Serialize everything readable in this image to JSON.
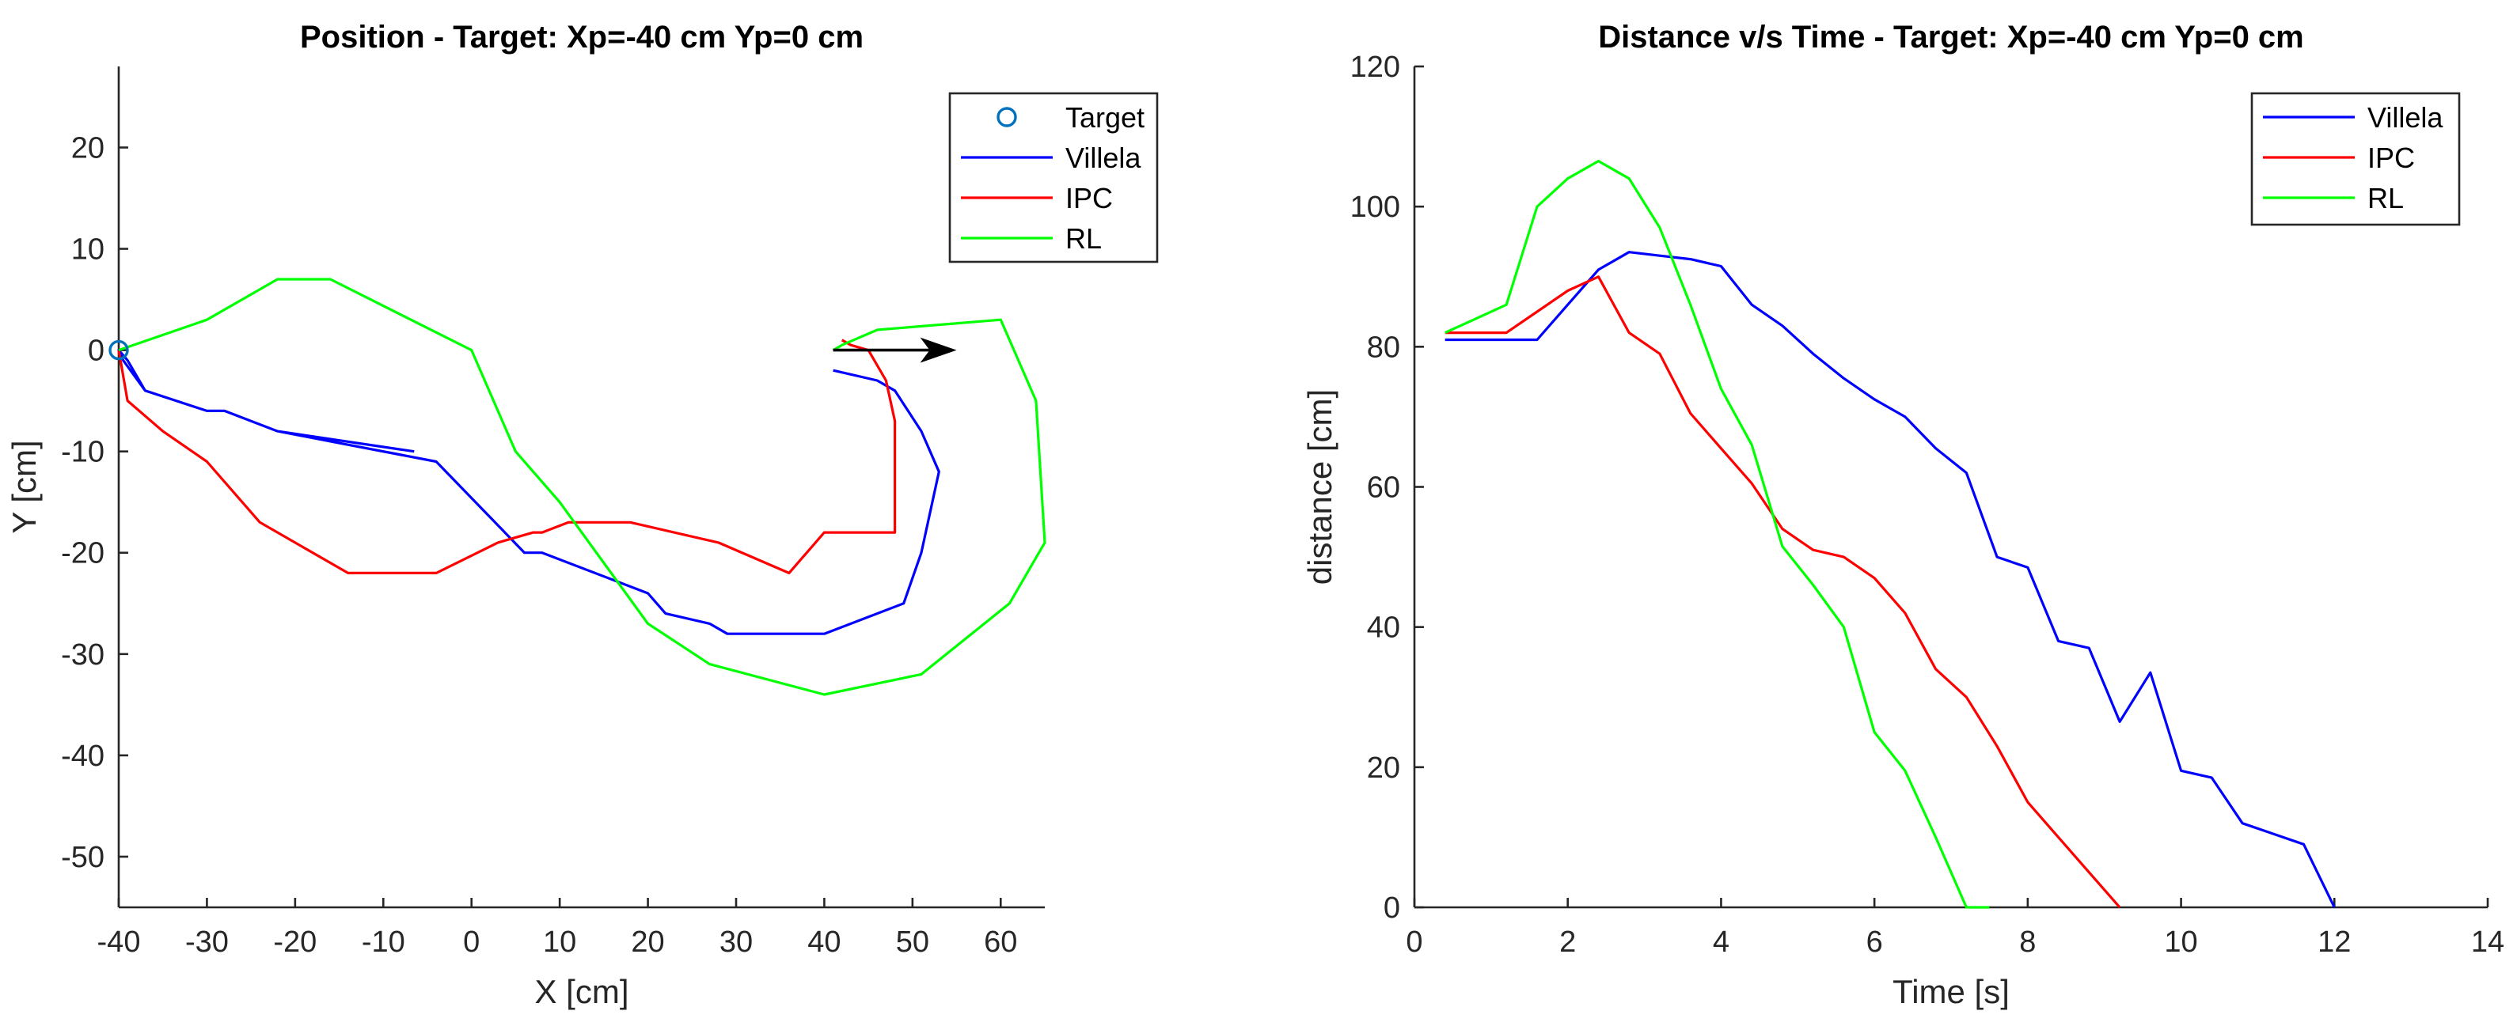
{
  "chart_data": [
    {
      "type": "line",
      "title": "Position - Target: Xp=-40 cm Yp=0 cm",
      "xlabel": "X [cm]",
      "ylabel": "Y [cm]",
      "xlim": [
        -40,
        65
      ],
      "ylim": [
        -55,
        28
      ],
      "xticks": [
        -40,
        -30,
        -20,
        -10,
        0,
        10,
        20,
        30,
        40,
        50,
        60
      ],
      "yticks": [
        -50,
        -40,
        -30,
        -20,
        -10,
        0,
        10,
        20
      ],
      "legend_position": "top-right",
      "target": {
        "name": "Target",
        "x": -40,
        "y": 0,
        "color": "#0072BD"
      },
      "arrow": {
        "x1": 41,
        "y1": 0,
        "x2": 55,
        "y2": 0,
        "color": "#000000"
      },
      "series": [
        {
          "name": "Villela",
          "color": "#0000FF",
          "x": [
            -6.5,
            -22,
            -28,
            -30,
            -37,
            -39.5,
            -40,
            -39,
            -37,
            -30,
            -28,
            -22,
            -16,
            -4,
            6,
            8,
            20,
            22,
            27,
            29,
            40,
            49,
            51,
            53,
            51,
            48,
            46,
            41
          ],
          "y": [
            -10,
            -8,
            -6,
            -6,
            -4,
            -1,
            0,
            -1,
            -4,
            -6,
            -6,
            -8,
            -9,
            -11,
            -20,
            -20,
            -24,
            -26,
            -27,
            -28,
            -28,
            -25,
            -20,
            -12,
            -8,
            -4,
            -3,
            -2
          ]
        },
        {
          "name": "IPC",
          "color": "#FF0000",
          "x": [
            -40,
            -39,
            -35,
            -30,
            -24,
            -14,
            -4,
            3,
            7,
            8,
            11,
            18,
            28,
            36,
            40,
            48,
            48,
            47,
            45,
            43,
            42
          ],
          "y": [
            0,
            -5,
            -8,
            -11,
            -17,
            -22,
            -22,
            -19,
            -18,
            -18,
            -17,
            -17,
            -19,
            -22,
            -18,
            -18,
            -7,
            -3,
            0,
            0.5,
            1
          ]
        },
        {
          "name": "RL",
          "color": "#00FF00",
          "x": [
            -40,
            -30,
            -22,
            -16,
            0,
            5,
            10,
            20,
            27,
            40,
            51,
            61,
            65,
            64,
            60,
            46,
            42,
            41
          ],
          "y": [
            0,
            3,
            7,
            7,
            0,
            -10,
            -15,
            -27,
            -31,
            -34,
            -32,
            -25,
            -19,
            -5,
            3,
            2,
            0.5,
            0
          ]
        }
      ]
    },
    {
      "type": "line",
      "title": "Distance v/s Time - Target: Xp=-40 cm Yp=0 cm",
      "xlabel": "Time [s]",
      "ylabel": "distance [cm]",
      "xlim": [
        0,
        14
      ],
      "ylim": [
        0,
        120
      ],
      "xticks": [
        0,
        2,
        4,
        6,
        8,
        10,
        12,
        14
      ],
      "yticks": [
        0,
        20,
        40,
        60,
        80,
        100,
        120
      ],
      "legend_position": "top-right",
      "series": [
        {
          "name": "Villela",
          "color": "#0000FF",
          "x": [
            0.4,
            0.8,
            1.2,
            1.6,
            2.0,
            2.4,
            2.8,
            3.2,
            3.6,
            4.0,
            4.4,
            4.8,
            5.2,
            5.6,
            6.0,
            6.4,
            6.8,
            7.2,
            7.6,
            8.0,
            8.4,
            8.8,
            9.2,
            9.6,
            10.0,
            10.4,
            10.8,
            11.2,
            11.6,
            12.0
          ],
          "y": [
            81,
            81,
            81,
            81,
            86,
            91,
            93.5,
            93,
            92.5,
            91.5,
            86,
            83,
            79,
            75.5,
            72.5,
            70,
            65.5,
            62,
            50,
            48.5,
            38,
            37,
            26.5,
            33.5,
            19.5,
            18.5,
            12,
            10.5,
            9,
            0
          ]
        },
        {
          "name": "IPC",
          "color": "#FF0000",
          "x": [
            0.4,
            0.8,
            1.2,
            1.6,
            2.0,
            2.4,
            2.8,
            3.2,
            3.6,
            4.0,
            4.4,
            4.8,
            5.2,
            5.6,
            6.0,
            6.4,
            6.8,
            7.2,
            7.6,
            8.0,
            8.4,
            8.8,
            9.2
          ],
          "y": [
            82,
            82,
            82,
            85,
            88,
            90,
            82,
            79,
            70.5,
            65.5,
            60.5,
            54,
            51,
            50,
            47,
            42,
            34,
            30,
            23,
            15,
            10,
            5,
            0
          ]
        },
        {
          "name": "RL",
          "color": "#00FF00",
          "x": [
            0.4,
            0.8,
            1.2,
            1.6,
            2.0,
            2.4,
            2.8,
            3.2,
            3.6,
            4.0,
            4.4,
            4.8,
            5.2,
            5.6,
            6.0,
            6.4,
            6.8,
            7.2,
            7.5
          ],
          "y": [
            82,
            84,
            86,
            100,
            104,
            106.5,
            104,
            97,
            86,
            74,
            66,
            51.5,
            46,
            40,
            25,
            19.5,
            10,
            0,
            0
          ]
        }
      ]
    }
  ]
}
